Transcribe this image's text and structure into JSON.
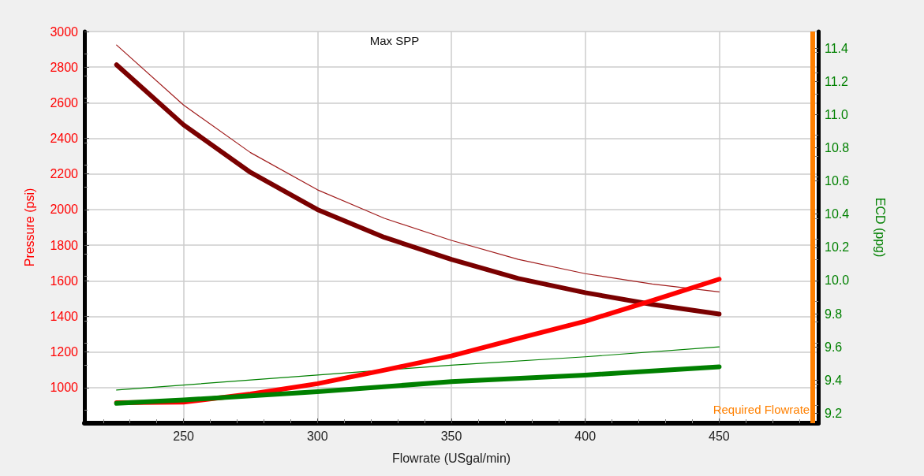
{
  "chart_data": {
    "type": "line",
    "xlabel": "Flowrate (USgal/min)",
    "ylabel": "Pressure (psi)",
    "y2label": "ECD (ppg)",
    "x": [
      225,
      250,
      275,
      300,
      325,
      350,
      375,
      400,
      425,
      450
    ],
    "series": [
      {
        "color": "#a01c1c",
        "values": [
          2924,
          2587,
          2320,
          2111,
          1951,
          1827,
          1720,
          1640,
          1582,
          1538
        ]
      },
      {
        "color": "#7a0000",
        "values": [
          2813,
          2476,
          2209,
          2000,
          1844,
          1720,
          1613,
          1533,
          1467,
          1413
        ]
      },
      {
        "color": "#ff0000",
        "values": [
          915,
          918,
          964,
          1022,
          1098,
          1178,
          1276,
          1373,
          1489,
          1609
        ]
      },
      {
        "color": "#008000",
        "axis": "y2",
        "x": [
          225,
          300,
          350,
          400,
          450
        ],
        "values": [
          9.34,
          9.43,
          9.49,
          9.54,
          9.6
        ]
      },
      {
        "color": "#008000",
        "axis": "y2",
        "x": [
          225,
          250,
          300,
          350,
          400,
          450
        ],
        "values": [
          9.26,
          9.28,
          9.33,
          9.39,
          9.43,
          9.48
        ]
      }
    ],
    "xlim": [
      213,
      487
    ],
    "xticks": [
      250,
      300,
      350,
      400,
      450
    ],
    "ylim": [
      800,
      3000
    ],
    "yticks": [
      1000,
      1200,
      1400,
      1600,
      1800,
      2000,
      2200,
      2400,
      2600,
      2800,
      3000
    ],
    "y2lim": [
      9.14,
      11.5
    ],
    "y2ticks": [
      9.2,
      9.4,
      9.6,
      9.8,
      {
        "value": 10,
        "label": "10.0"
      },
      10.2,
      10.4,
      10.6,
      10.8,
      {
        "value": 11,
        "label": "11.0"
      },
      11.2,
      11.4
    ],
    "ref_lines": [
      {
        "axis": "x",
        "value": 485,
        "label": "Required Flowrate",
        "color": "#ff8000"
      }
    ],
    "annotations": [
      "Max SPP"
    ],
    "grid": true,
    "marker": "none",
    "line_style": "solid"
  }
}
